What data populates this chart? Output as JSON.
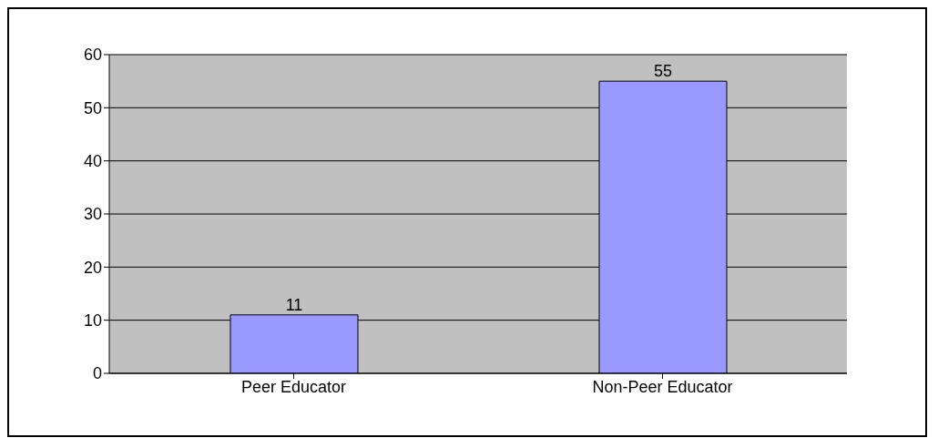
{
  "chart_data": {
    "type": "bar",
    "categories": [
      "Peer Educator",
      "Non-Peer Educator"
    ],
    "values": [
      11,
      55
    ],
    "color": "#9999ff",
    "ylim": [
      0,
      60
    ],
    "yticks": [
      0,
      10,
      20,
      30,
      40,
      50,
      60
    ],
    "grid": "y",
    "data_labels": true
  }
}
